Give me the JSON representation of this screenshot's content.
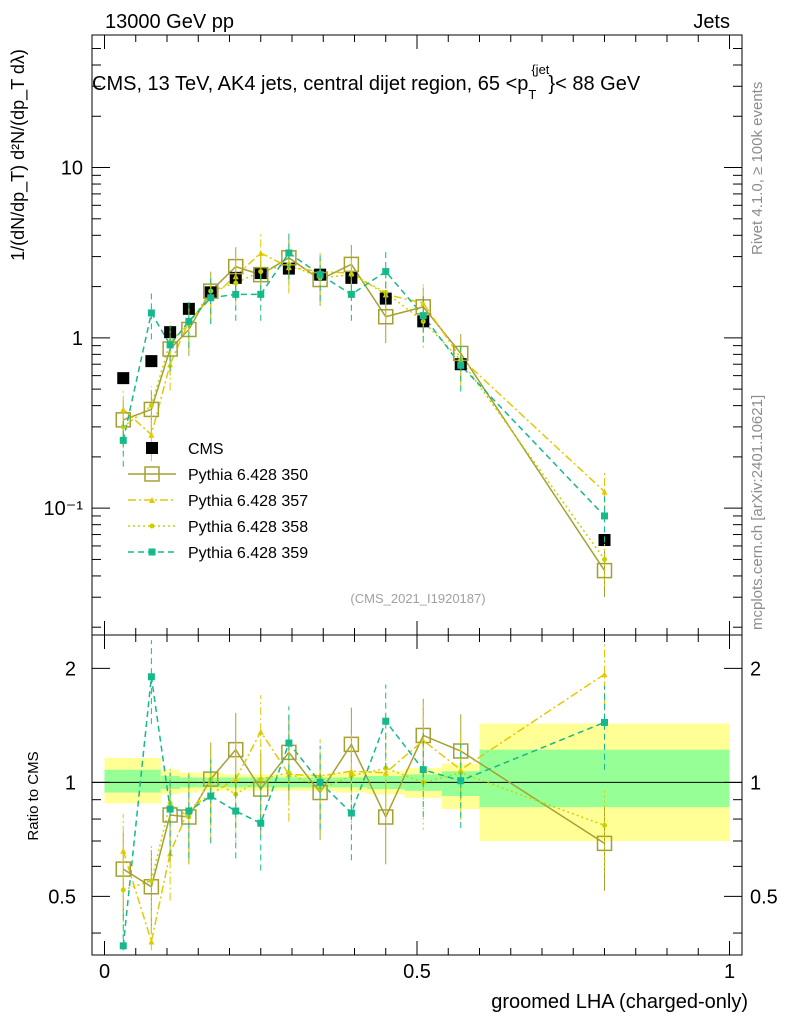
{
  "header": {
    "left": "13000 GeV pp",
    "right": "Jets"
  },
  "side_text": {
    "rivet": "Rivet 4.1.0, ≥ 100k events",
    "mcplots": "mcplots.cern.ch [arXiv:2401.10621]"
  },
  "colors": {
    "cms": "#000000",
    "p350": "#a5a032",
    "p357": "#e6c800",
    "p358": "#c8d200",
    "p359": "#14b98c",
    "band_outer": "#ffff96",
    "band_inner": "#96ff96"
  },
  "chart_data": {
    "type": "line",
    "title": "CMS, 13 TeV, AK4 jets, central dijet region, 65 <p_T^{jet}< 88 GeV",
    "title_parts": {
      "main": "CMS, 13 TeV, AK4 jets, central dijet region, 65 <p",
      "sub": "T",
      "sup": "{jet",
      "tail": "}< 88 GeV"
    },
    "watermark": "(CMS_2021_I1920187)",
    "xlabel": "groomed LHA (charged-only)",
    "ylabel_main": "1/(dN/dp_T) d²N/(dp_T dλ)",
    "ylabel_ratio": "Ratio to CMS",
    "xlim": [
      -0.02,
      1.02
    ],
    "ylim_main": [
      0.018,
      60
    ],
    "ylim_ratio": [
      0.35,
      2.45
    ],
    "x_ticks": [
      "0",
      "0.5",
      "1"
    ],
    "y_ticks_main": [
      "10⁻¹",
      "1",
      "10"
    ],
    "y_ticks_ratio": [
      "0.5",
      "1",
      "2"
    ],
    "bin_edges": [
      0,
      0.06,
      0.09,
      0.12,
      0.15,
      0.19,
      0.23,
      0.27,
      0.32,
      0.37,
      0.42,
      0.48,
      0.54,
      0.6,
      1.0
    ],
    "x": [
      0.03,
      0.075,
      0.105,
      0.135,
      0.17,
      0.21,
      0.25,
      0.295,
      0.345,
      0.395,
      0.45,
      0.51,
      0.57,
      0.8
    ],
    "cms": [
      0.58,
      0.73,
      1.08,
      1.48,
      1.85,
      2.25,
      2.4,
      2.55,
      2.35,
      2.25,
      1.7,
      1.25,
      0.7,
      0.065
    ],
    "ratio_band_outer": [
      [
        0.88,
        1.16
      ],
      [
        0.88,
        1.16
      ],
      [
        0.93,
        1.08
      ],
      [
        0.94,
        1.06
      ],
      [
        0.95,
        1.06
      ],
      [
        0.95,
        1.05
      ],
      [
        0.95,
        1.05
      ],
      [
        0.95,
        1.05
      ],
      [
        0.95,
        1.05
      ],
      [
        0.94,
        1.06
      ],
      [
        0.93,
        1.07
      ],
      [
        0.91,
        1.09
      ],
      [
        0.85,
        1.12
      ],
      [
        0.7,
        1.43
      ]
    ],
    "ratio_band_inner": [
      [
        0.94,
        1.08
      ],
      [
        0.94,
        1.08
      ],
      [
        0.96,
        1.04
      ],
      [
        0.97,
        1.03
      ],
      [
        0.97,
        1.03
      ],
      [
        0.97,
        1.03
      ],
      [
        0.97,
        1.03
      ],
      [
        0.97,
        1.03
      ],
      [
        0.97,
        1.03
      ],
      [
        0.97,
        1.03
      ],
      [
        0.96,
        1.04
      ],
      [
        0.95,
        1.05
      ],
      [
        0.92,
        1.07
      ],
      [
        0.86,
        1.22
      ]
    ],
    "series": [
      {
        "name": "CMS",
        "key": "cms",
        "marker": "square-filled",
        "line": "none",
        "values": [
          0.58,
          0.73,
          1.08,
          1.48,
          1.85,
          2.25,
          2.4,
          2.55,
          2.35,
          2.25,
          1.7,
          1.25,
          0.7,
          0.065
        ],
        "ratio": [
          1,
          1,
          1,
          1,
          1,
          1,
          1,
          1,
          1,
          1,
          1,
          1,
          1,
          1
        ]
      },
      {
        "name": "Pythia 6.428 350",
        "key": "p350",
        "marker": "square-open",
        "line": "solid",
        "values": [
          0.33,
          0.38,
          0.86,
          1.12,
          1.88,
          2.62,
          2.35,
          2.95,
          2.2,
          2.7,
          1.33,
          1.52,
          0.81,
          0.043
        ],
        "ratio": [
          0.59,
          0.53,
          0.82,
          0.81,
          1.02,
          1.22,
          0.96,
          1.2,
          0.94,
          1.26,
          0.81,
          1.33,
          1.21,
          0.69
        ]
      },
      {
        "name": "Pythia 6.428 357",
        "key": "p357",
        "marker": "triangle",
        "line": "dashdot",
        "values": [
          0.38,
          0.27,
          0.7,
          1.25,
          1.72,
          2.3,
          3.15,
          2.6,
          2.45,
          2.4,
          1.8,
          1.6,
          0.76,
          0.125
        ],
        "ratio": [
          0.66,
          0.38,
          0.65,
          0.85,
          0.93,
          1.02,
          1.36,
          1.05,
          1.04,
          1.07,
          1.06,
          1.29,
          1.08,
          1.93
        ]
      },
      {
        "name": "Pythia 6.428 358",
        "key": "p358",
        "marker": "dot",
        "line": "dotted",
        "values": [
          0.3,
          0.4,
          0.95,
          1.2,
          1.88,
          2.1,
          2.45,
          2.7,
          2.25,
          2.35,
          1.85,
          1.25,
          0.74,
          0.05
        ],
        "ratio": [
          0.52,
          0.55,
          0.88,
          0.81,
          1.02,
          0.93,
          1.02,
          1.06,
          0.96,
          1.04,
          1.09,
          1.0,
          1.06,
          0.77
        ]
      },
      {
        "name": "Pythia 6.428 359",
        "key": "p359",
        "marker": "square-small",
        "line": "dashed",
        "values": [
          0.25,
          1.4,
          0.91,
          1.25,
          1.72,
          1.8,
          1.8,
          3.15,
          2.35,
          1.8,
          2.45,
          1.35,
          0.69,
          0.09
        ],
        "ratio": [
          0.37,
          1.9,
          0.85,
          0.84,
          0.92,
          0.84,
          0.78,
          1.27,
          1.0,
          0.83,
          1.45,
          1.08,
          1.01,
          1.44
        ]
      }
    ]
  }
}
